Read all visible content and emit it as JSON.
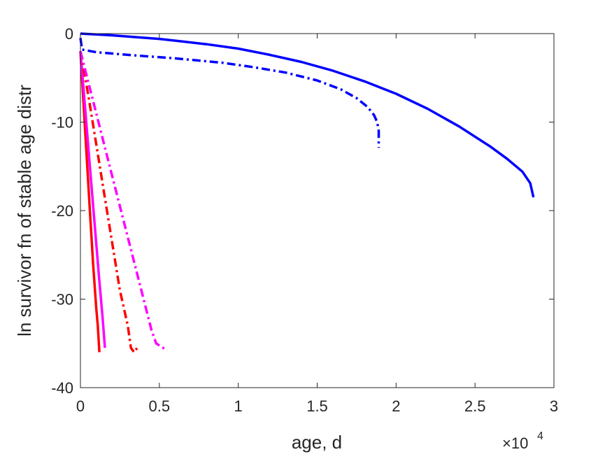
{
  "chart_data": {
    "type": "line",
    "title": "",
    "xlabel": "age, d",
    "ylabel": "ln survivor fn of stable age distr",
    "xlim": [
      0,
      30000
    ],
    "ylim": [
      -40,
      0
    ],
    "x_exponent_label": "×10",
    "x_exponent": "4",
    "grid": false,
    "legend": "none",
    "xticks": [
      {
        "value": 0,
        "label": "0"
      },
      {
        "value": 5000,
        "label": "0.5"
      },
      {
        "value": 10000,
        "label": "1"
      },
      {
        "value": 15000,
        "label": "1.5"
      },
      {
        "value": 20000,
        "label": "2"
      },
      {
        "value": 25000,
        "label": "2.5"
      },
      {
        "value": 30000,
        "label": "3"
      }
    ],
    "yticks": [
      {
        "value": 0,
        "label": "0"
      },
      {
        "value": -10,
        "label": "-10"
      },
      {
        "value": -20,
        "label": "-20"
      },
      {
        "value": -30,
        "label": "-30"
      },
      {
        "value": -40,
        "label": "-40"
      }
    ],
    "series": [
      {
        "color": "#0000ff",
        "dash": "solid",
        "x": [
          0,
          2000,
          5000,
          8000,
          10000,
          12000,
          14000,
          16000,
          18000,
          20000,
          22000,
          24000,
          26000,
          27000,
          28000,
          28500,
          28700
        ],
        "y": [
          0,
          -0.2,
          -0.6,
          -1.2,
          -1.7,
          -2.4,
          -3.2,
          -4.2,
          -5.4,
          -6.8,
          -8.5,
          -10.5,
          -12.8,
          -14.1,
          -15.6,
          -16.9,
          -18.5
        ]
      },
      {
        "color": "#0000ff",
        "dash": "dashdot",
        "x": [
          0,
          100,
          1000,
          3000,
          6000,
          9000,
          11000,
          13000,
          15000,
          16500,
          17500,
          18200,
          18600,
          18800,
          18900,
          18900
        ],
        "y": [
          -0.5,
          -1.8,
          -2.1,
          -2.4,
          -2.8,
          -3.3,
          -3.8,
          -4.4,
          -5.3,
          -6.3,
          -7.3,
          -8.3,
          -9.2,
          -10.0,
          -11.0,
          -12.9
        ]
      },
      {
        "color": "#ff0000",
        "dash": "solid",
        "x": [
          0,
          200,
          400,
          600,
          800,
          1000,
          1100,
          1200
        ],
        "y": [
          -2,
          -8,
          -14,
          -20,
          -26,
          -31,
          -33,
          -36
        ]
      },
      {
        "color": "#ff00ff",
        "dash": "solid",
        "x": [
          0,
          300,
          600,
          900,
          1200,
          1400,
          1550
        ],
        "y": [
          -2,
          -8.5,
          -15,
          -21.5,
          -28,
          -32,
          -35.5
        ]
      },
      {
        "color": "#ff0000",
        "dash": "dashdot",
        "x": [
          0,
          500,
          1000,
          1500,
          2000,
          2500,
          3000,
          3200,
          3400,
          3600
        ],
        "y": [
          -2,
          -7,
          -12.5,
          -18,
          -23.5,
          -29,
          -33,
          -35.5,
          -36,
          -35.5
        ]
      },
      {
        "color": "#ff00ff",
        "dash": "dashdot",
        "x": [
          0,
          500,
          1000,
          1500,
          2000,
          2500,
          3000,
          3500,
          4000,
          4500,
          4800,
          5500
        ],
        "y": [
          -2,
          -5.5,
          -9,
          -12.5,
          -16,
          -19.5,
          -23,
          -26.5,
          -30,
          -33.5,
          -35,
          -35.8
        ]
      }
    ]
  }
}
